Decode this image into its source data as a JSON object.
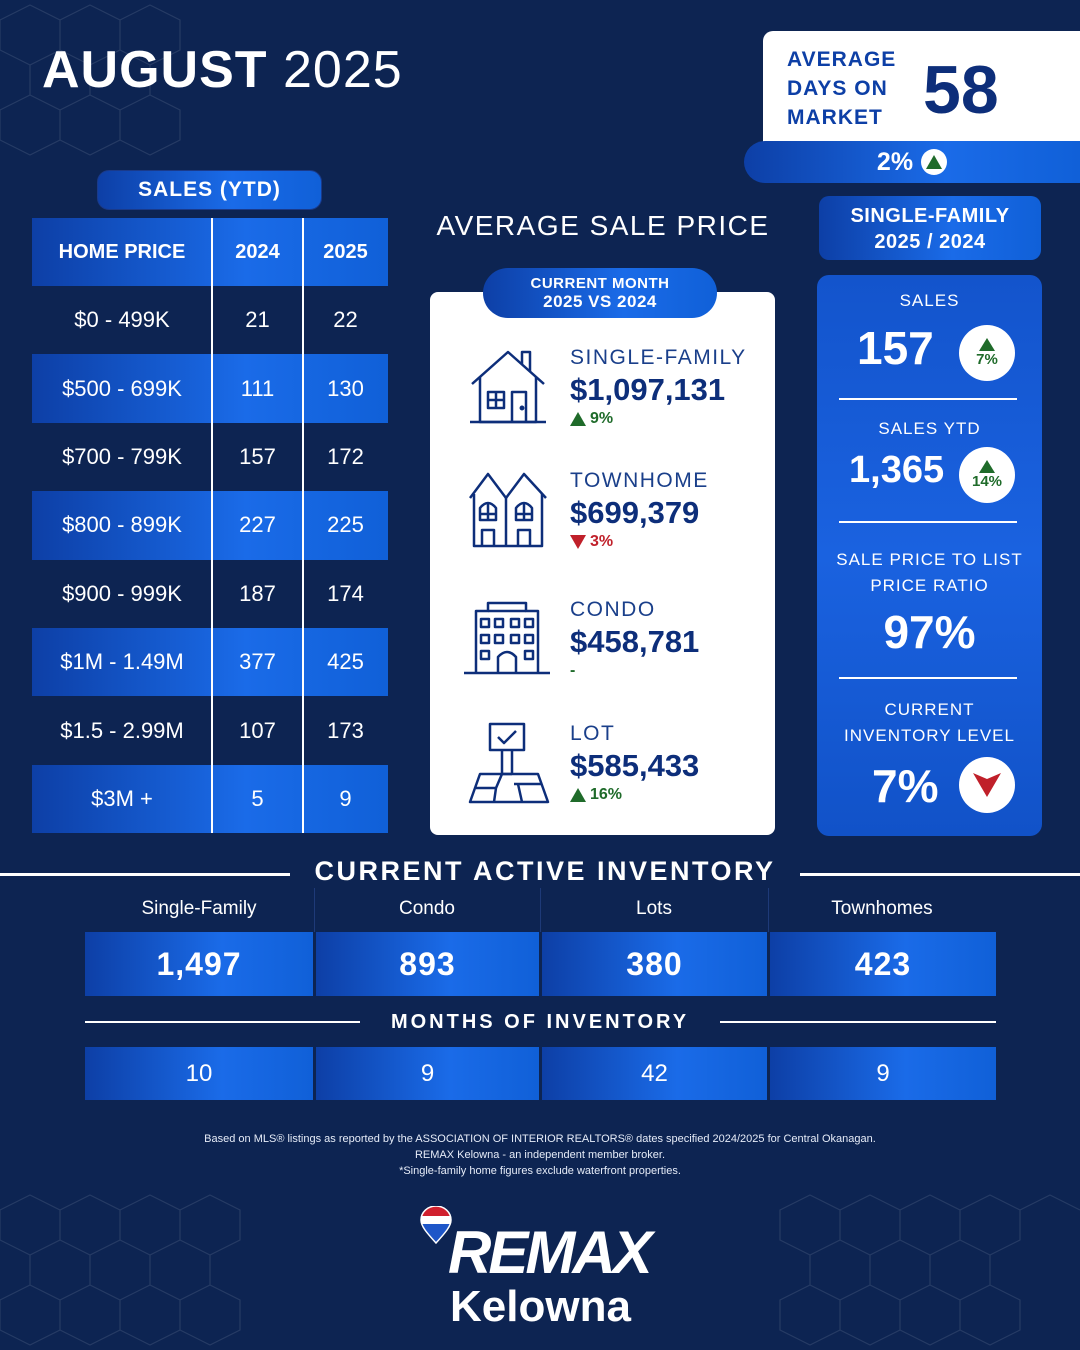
{
  "header": {
    "month": "AUGUST",
    "year": "2025"
  },
  "days_on_market": {
    "label": "AVERAGE DAYS ON MARKET",
    "value": "58",
    "change": "2%",
    "direction": "up"
  },
  "sales_ytd": {
    "title": "SALES (YTD)",
    "columns": [
      "HOME PRICE",
      "2024",
      "2025"
    ],
    "rows": [
      {
        "range": "$0 - 499K",
        "y2024": "21",
        "y2025": "22"
      },
      {
        "range": "$500 - 699K",
        "y2024": "111",
        "y2025": "130"
      },
      {
        "range": "$700 - 799K",
        "y2024": "157",
        "y2025": "172"
      },
      {
        "range": "$800 - 899K",
        "y2024": "227",
        "y2025": "225"
      },
      {
        "range": "$900 - 999K",
        "y2024": "187",
        "y2025": "174"
      },
      {
        "range": "$1M - 1.49M",
        "y2024": "377",
        "y2025": "425"
      },
      {
        "range": "$1.5 - 2.99M",
        "y2024": "107",
        "y2025": "173"
      },
      {
        "range": "$3M +",
        "y2024": "5",
        "y2025": "9"
      }
    ]
  },
  "average_sale_price": {
    "title": "AVERAGE SALE PRICE",
    "badge_line1": "CURRENT MONTH",
    "badge_line2": "2025 VS 2024",
    "items": [
      {
        "label": "SINGLE-FAMILY",
        "price": "$1,097,131",
        "change": "9%",
        "direction": "up",
        "icon": "house-icon"
      },
      {
        "label": "TOWNHOME",
        "price": "$699,379",
        "change": "3%",
        "direction": "down",
        "icon": "townhome-icon"
      },
      {
        "label": "CONDO",
        "price": "$458,781",
        "change": "-",
        "direction": "none",
        "icon": "condo-building-icon"
      },
      {
        "label": "LOT",
        "price": "$585,433",
        "change": "16%",
        "direction": "up",
        "icon": "lot-sign-icon"
      }
    ]
  },
  "single_family": {
    "title_line1": "SINGLE-FAMILY",
    "title_line2": "2025 / 2024",
    "sales_label": "SALES",
    "sales_value": "157",
    "sales_change": "7%",
    "ytd_label": "SALES YTD",
    "ytd_value": "1,365",
    "ytd_change": "14%",
    "ratio_label_line1": "SALE PRICE TO LIST",
    "ratio_label_line2": "PRICE RATIO",
    "ratio_value": "97%",
    "inventory_label_line1": "CURRENT",
    "inventory_label_line2": "INVENTORY LEVEL",
    "inventory_value": "7%",
    "inventory_direction": "down"
  },
  "active_inventory": {
    "title": "CURRENT ACTIVE INVENTORY",
    "columns": [
      {
        "label": "Single-Family",
        "value": "1,497",
        "months": "10"
      },
      {
        "label": "Condo",
        "value": "893",
        "months": "9"
      },
      {
        "label": "Lots",
        "value": "380",
        "months": "42"
      },
      {
        "label": "Townhomes",
        "value": "423",
        "months": "9"
      }
    ],
    "months_title": "MONTHS OF INVENTORY"
  },
  "footer": {
    "line1": "Based on MLS® listings as reported by the ASSOCIATION OF INTERIOR REALTORS® dates specified 2024/2025 for Central Okanagan.",
    "line2": "REMAX Kelowna - an independent member broker.",
    "line3": "*Single-family home figures exclude waterfront properties.",
    "brand": "REMAX",
    "brand_sub": "Kelowna"
  },
  "colors": {
    "navy": "#0d2452",
    "accent_blue": "#1a6be8",
    "up_green": "#1f6b2a",
    "down_red": "#c0202a"
  }
}
